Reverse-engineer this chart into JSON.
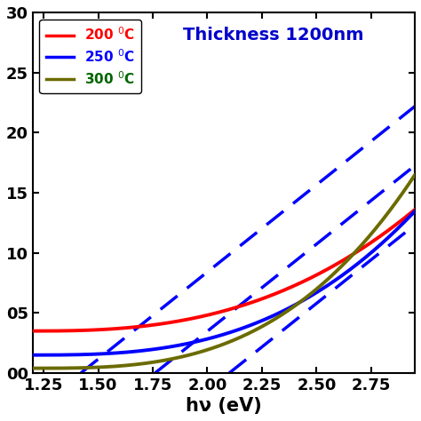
{
  "title": "Thickness 1200nm",
  "title_color": "#0000cc",
  "xlabel": "hν (eV)",
  "ylabel": "",
  "xlim": [
    1.2,
    2.95
  ],
  "ylim": [
    0,
    30
  ],
  "yticks": [
    0,
    5,
    10,
    15,
    20,
    25,
    30
  ],
  "ytick_labels": [
    "00",
    "05",
    "10",
    "15",
    "20",
    "25",
    "30"
  ],
  "xticks": [
    1.25,
    1.5,
    1.75,
    2.0,
    2.25,
    2.5,
    2.75
  ],
  "curve_200": {
    "color": "#ff0000",
    "linewidth": 2.8,
    "y0": 3.5,
    "power": 2.6,
    "scale": 0.62
  },
  "curve_250": {
    "color": "#0000ff",
    "linewidth": 2.8,
    "y0": 1.5,
    "power": 2.8,
    "scale": 0.78
  },
  "curve_300": {
    "color": "#6b6b00",
    "linewidth": 2.8,
    "y0": 0.4,
    "power": 3.0,
    "scale": 1.0
  },
  "dashed_lines": [
    {
      "xi": 1.42,
      "slope": 14.5
    },
    {
      "xi": 1.76,
      "slope": 14.5
    },
    {
      "xi": 2.1,
      "slope": 14.5
    }
  ],
  "dash_color": "#0000ff",
  "dash_linewidth": 2.5,
  "background_color": "#ffffff",
  "legend_fontsize": 11,
  "title_fontsize": 14,
  "axis_fontsize": 13
}
